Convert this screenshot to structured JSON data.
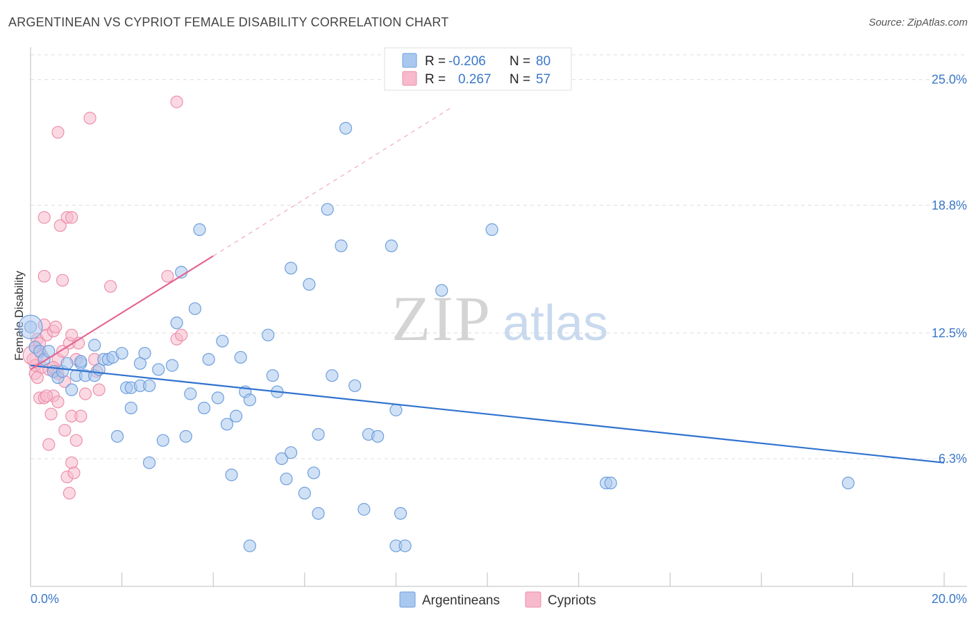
{
  "header": {
    "title": "ARGENTINEAN VS CYPRIOT FEMALE DISABILITY CORRELATION CHART",
    "source": "Source: ZipAtlas.com"
  },
  "watermark": {
    "zip": "ZIP",
    "atlas": "atlas"
  },
  "legend": {
    "rows": [
      {
        "r_label": "R =",
        "r_value": "-0.206",
        "n_label": "N =",
        "n_value": "80",
        "color": "#a9c8ef"
      },
      {
        "r_label": "R =",
        "r_value": "0.267",
        "n_label": "N =",
        "n_value": "57",
        "color": "#f7b9cc"
      }
    ],
    "series": [
      {
        "name": "Argentineans",
        "color": "#a9c8ef"
      },
      {
        "name": "Cypriots",
        "color": "#f7b9cc"
      }
    ]
  },
  "colors": {
    "blue_fill": "#a9c8ef",
    "blue_stroke": "#6e9fdc",
    "blue_line": "#2f72cf",
    "pink_fill": "#f7b9cc",
    "pink_stroke": "#ec8fab",
    "pink_line": "#e46590",
    "axis_text": "#3a77c8",
    "grid": "#dcdcdc"
  },
  "chart_data": {
    "type": "scatter",
    "title": "ARGENTINEAN VS CYPRIOT FEMALE DISABILITY CORRELATION CHART",
    "xlabel": "",
    "ylabel": "Female Disability",
    "xlim": [
      0,
      20.5
    ],
    "ylim": [
      0,
      26.6
    ],
    "x_tick_labels": [
      "0.0%",
      "20.0%"
    ],
    "y_ticks": [
      6.3,
      12.5,
      18.8,
      25.0
    ],
    "y_tick_labels": [
      "6.3%",
      "12.5%",
      "18.8%",
      "25.0%"
    ],
    "series": [
      {
        "name": "Argentineans",
        "r": -0.206,
        "n": 80,
        "trend": {
          "x": [
            0,
            20.0
          ],
          "y": [
            10.9,
            6.1
          ],
          "dashed_to": null
        },
        "points": [
          [
            0.1,
            11.8
          ],
          [
            0.2,
            11.6
          ],
          [
            0.3,
            11.2
          ],
          [
            0.5,
            10.6
          ],
          [
            0.6,
            10.3
          ],
          [
            0.7,
            10.6
          ],
          [
            0.8,
            11.0
          ],
          [
            0.9,
            9.7
          ],
          [
            1.0,
            10.4
          ],
          [
            1.1,
            11.0
          ],
          [
            1.2,
            10.4
          ],
          [
            1.4,
            10.4
          ],
          [
            1.4,
            11.9
          ],
          [
            1.5,
            10.7
          ],
          [
            1.6,
            11.2
          ],
          [
            1.7,
            11.2
          ],
          [
            1.8,
            11.3
          ],
          [
            1.9,
            7.4
          ],
          [
            2.0,
            11.5
          ],
          [
            2.1,
            9.8
          ],
          [
            2.2,
            9.8
          ],
          [
            2.2,
            8.8
          ],
          [
            2.4,
            11.0
          ],
          [
            2.4,
            9.9
          ],
          [
            2.5,
            11.5
          ],
          [
            2.6,
            6.1
          ],
          [
            2.6,
            9.9
          ],
          [
            2.8,
            10.7
          ],
          [
            2.9,
            7.2
          ],
          [
            3.1,
            10.9
          ],
          [
            3.2,
            13.0
          ],
          [
            3.3,
            15.5
          ],
          [
            3.4,
            7.4
          ],
          [
            3.5,
            9.5
          ],
          [
            3.6,
            13.7
          ],
          [
            3.7,
            17.6
          ],
          [
            3.8,
            8.8
          ],
          [
            3.9,
            11.2
          ],
          [
            4.1,
            9.3
          ],
          [
            4.2,
            12.1
          ],
          [
            4.3,
            8.0
          ],
          [
            4.4,
            5.5
          ],
          [
            4.5,
            8.4
          ],
          [
            4.6,
            11.3
          ],
          [
            4.7,
            9.6
          ],
          [
            4.8,
            9.2
          ],
          [
            4.8,
            2.0
          ],
          [
            5.2,
            12.4
          ],
          [
            5.3,
            10.4
          ],
          [
            5.4,
            9.6
          ],
          [
            5.5,
            6.3
          ],
          [
            5.6,
            5.3
          ],
          [
            5.7,
            15.7
          ],
          [
            5.7,
            6.6
          ],
          [
            6.0,
            4.6
          ],
          [
            6.1,
            14.9
          ],
          [
            6.2,
            5.6
          ],
          [
            6.3,
            3.6
          ],
          [
            6.3,
            7.5
          ],
          [
            6.5,
            18.6
          ],
          [
            6.6,
            10.4
          ],
          [
            6.8,
            16.8
          ],
          [
            6.9,
            22.6
          ],
          [
            7.1,
            9.9
          ],
          [
            7.3,
            3.8
          ],
          [
            7.4,
            7.5
          ],
          [
            7.6,
            7.4
          ],
          [
            7.9,
            16.8
          ],
          [
            8.0,
            2.0
          ],
          [
            8.0,
            8.7
          ],
          [
            8.1,
            3.6
          ],
          [
            8.2,
            2.0
          ],
          [
            9.0,
            14.6
          ],
          [
            10.1,
            17.6
          ],
          [
            12.6,
            5.1
          ],
          [
            12.7,
            5.1
          ],
          [
            17.9,
            5.1
          ],
          [
            0.0,
            12.8
          ],
          [
            0.4,
            11.6
          ],
          [
            1.1,
            11.1
          ]
        ]
      },
      {
        "name": "Cypriots",
        "r": 0.267,
        "n": 57,
        "trend": {
          "x": [
            0,
            4.0
          ],
          "y": [
            10.7,
            16.3
          ],
          "dashed_to": {
            "x": 9.2,
            "y": 23.6
          }
        },
        "points": [
          [
            0.05,
            11.2
          ],
          [
            0.1,
            10.5
          ],
          [
            0.1,
            10.9
          ],
          [
            0.15,
            12.2
          ],
          [
            0.2,
            11.6
          ],
          [
            0.2,
            9.3
          ],
          [
            0.25,
            10.8
          ],
          [
            0.3,
            12.9
          ],
          [
            0.3,
            9.3
          ],
          [
            0.3,
            15.3
          ],
          [
            0.3,
            18.2
          ],
          [
            0.35,
            12.4
          ],
          [
            0.4,
            10.7
          ],
          [
            0.4,
            7.0
          ],
          [
            0.45,
            8.5
          ],
          [
            0.5,
            12.6
          ],
          [
            0.5,
            9.4
          ],
          [
            0.55,
            12.8
          ],
          [
            0.55,
            10.6
          ],
          [
            0.6,
            9.1
          ],
          [
            0.6,
            11.2
          ],
          [
            0.6,
            22.4
          ],
          [
            0.65,
            17.8
          ],
          [
            0.7,
            15.1
          ],
          [
            0.7,
            11.6
          ],
          [
            0.75,
            7.7
          ],
          [
            0.75,
            10.1
          ],
          [
            0.8,
            5.4
          ],
          [
            0.8,
            18.2
          ],
          [
            0.85,
            12.0
          ],
          [
            0.85,
            4.6
          ],
          [
            0.9,
            8.4
          ],
          [
            0.9,
            18.2
          ],
          [
            0.9,
            6.1
          ],
          [
            0.95,
            5.6
          ],
          [
            1.0,
            7.2
          ],
          [
            1.0,
            11.2
          ],
          [
            1.05,
            12.0
          ],
          [
            1.1,
            8.4
          ],
          [
            1.2,
            9.5
          ],
          [
            1.3,
            23.1
          ],
          [
            1.4,
            11.2
          ],
          [
            1.45,
            10.6
          ],
          [
            1.5,
            9.7
          ],
          [
            1.75,
            14.8
          ],
          [
            3.0,
            15.3
          ],
          [
            3.2,
            12.2
          ],
          [
            3.3,
            12.4
          ],
          [
            3.2,
            23.9
          ],
          [
            0.1,
            11.8
          ],
          [
            0.15,
            10.3
          ],
          [
            0.2,
            12.0
          ],
          [
            0.25,
            11.4
          ],
          [
            0.35,
            9.4
          ],
          [
            0.5,
            10.8
          ],
          [
            0.6,
            10.5
          ],
          [
            0.9,
            12.4
          ]
        ]
      }
    ]
  }
}
